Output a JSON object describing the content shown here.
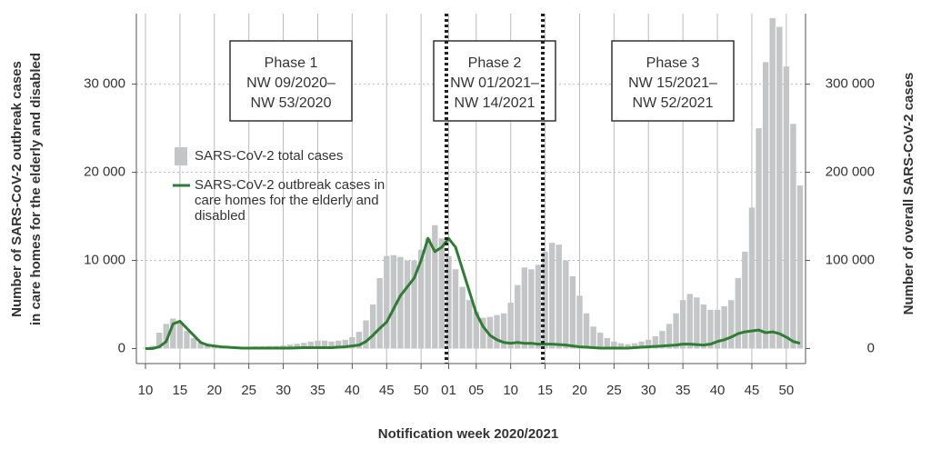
{
  "chart_data": {
    "type": "bar_line",
    "x_label": "Notification week 2020/2021",
    "y_label": [
      "Number of SARS-CoV-2 outbreak cases",
      "in care homes for the elderly and disabled"
    ],
    "y2_label": "Number of overall SARS-CoV-2 cases",
    "categories": [
      "10",
      null,
      null,
      null,
      null,
      "15",
      null,
      null,
      null,
      null,
      "20",
      null,
      null,
      null,
      null,
      "25",
      null,
      null,
      null,
      null,
      "30",
      null,
      null,
      null,
      null,
      "35",
      null,
      null,
      null,
      null,
      "40",
      null,
      null,
      null,
      null,
      "45",
      null,
      null,
      null,
      null,
      "50",
      null,
      null,
      null,
      "01",
      null,
      null,
      null,
      "05",
      null,
      null,
      null,
      null,
      "10",
      null,
      null,
      null,
      null,
      "15",
      null,
      null,
      null,
      null,
      "20",
      null,
      null,
      null,
      null,
      "25",
      null,
      null,
      null,
      null,
      "30",
      null,
      null,
      null,
      null,
      "35",
      null,
      null,
      null,
      null,
      "40",
      null,
      null,
      null,
      null,
      "45",
      null,
      null,
      null,
      null,
      "50",
      null,
      null
    ],
    "series": [
      {
        "name": "SARS-CoV-2 total cases",
        "type": "bar",
        "axis": "y2",
        "color": "#c3c5c7",
        "values": [
          1000,
          3000,
          18000,
          28000,
          34000,
          30000,
          20000,
          12000,
          7000,
          5000,
          4000,
          3000,
          2500,
          2000,
          2000,
          2000,
          2500,
          2500,
          3000,
          3000,
          3500,
          4500,
          5500,
          6500,
          8000,
          9000,
          9000,
          8000,
          9000,
          10000,
          13000,
          19000,
          32000,
          50000,
          80000,
          105000,
          106000,
          104000,
          100000,
          100000,
          112000,
          125000,
          140000,
          125000,
          105000,
          90000,
          70000,
          55000,
          42000,
          35000,
          36000,
          38000,
          40000,
          52000,
          72000,
          92000,
          90000,
          95000,
          110000,
          120000,
          118000,
          100000,
          82000,
          60000,
          40000,
          25000,
          18000,
          12000,
          8000,
          6000,
          5000,
          6000,
          8000,
          10000,
          14000,
          20000,
          28000,
          40000,
          55000,
          62000,
          58000,
          50000,
          44000,
          44000,
          48000,
          55000,
          80000,
          110000,
          160000,
          250000,
          325000,
          375000,
          365000,
          320000,
          255000,
          185000
        ]
      },
      {
        "name": "SARS-CoV-2 outbreak cases in care homes for the elderly and disabled",
        "type": "line",
        "axis": "y",
        "color": "#2e7d32",
        "values": [
          0,
          0,
          200,
          800,
          2800,
          3100,
          2300,
          1500,
          700,
          400,
          300,
          200,
          150,
          100,
          50,
          50,
          50,
          50,
          50,
          50,
          50,
          50,
          80,
          100,
          100,
          100,
          100,
          100,
          150,
          200,
          300,
          400,
          800,
          1500,
          2300,
          3000,
          4500,
          6000,
          7000,
          8000,
          10000,
          12500,
          11000,
          11500,
          12500,
          11500,
          9000,
          6500,
          4000,
          2500,
          1500,
          1000,
          700,
          600,
          700,
          600,
          600,
          500,
          500,
          500,
          450,
          400,
          300,
          200,
          150,
          100,
          50,
          50,
          50,
          50,
          50,
          100,
          150,
          200,
          250,
          300,
          350,
          400,
          500,
          500,
          450,
          400,
          500,
          800,
          1000,
          1300,
          1700,
          1900,
          2000,
          2100,
          1800,
          1900,
          1700,
          1300,
          800,
          600
        ]
      }
    ],
    "ylim": [
      -1700,
      38000
    ],
    "yticks": [
      {
        "value": 0,
        "label": "0"
      },
      {
        "value": 10000,
        "label": "10 000"
      },
      {
        "value": 20000,
        "label": "20 000"
      },
      {
        "value": 30000,
        "label": "30 000"
      }
    ],
    "y2lim": [
      -17000,
      380000
    ],
    "y2ticks": [
      {
        "value": 0,
        "label": "0"
      },
      {
        "value": 100000,
        "label": "100 000"
      },
      {
        "value": 200000,
        "label": "200 000"
      },
      {
        "value": 300000,
        "label": "300 000"
      }
    ],
    "grid": true,
    "annotations": [
      {
        "lines": [
          "Phase 1",
          "NW 09/2020–",
          "NW 53/2020"
        ]
      },
      {
        "lines": [
          "Phase 2",
          "NW 01/2021–",
          "NW 14/2021"
        ]
      },
      {
        "lines": [
          "Phase 3",
          "NW 15/2021–",
          "NW 52/2021"
        ]
      }
    ]
  }
}
